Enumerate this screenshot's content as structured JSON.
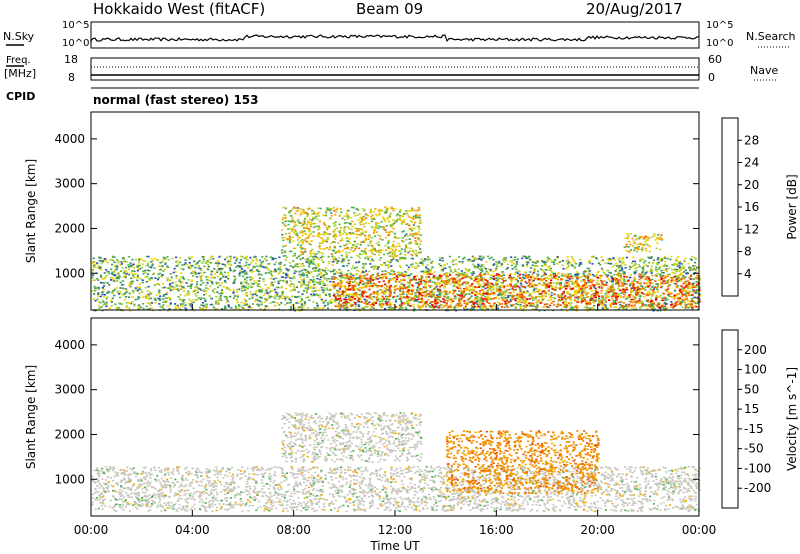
{
  "header": {
    "station": "Hokkaido West (fitACF)",
    "beam": "Beam 09",
    "date": "20/Aug/2017"
  },
  "strip_labels": {
    "nsky": "N.Sky",
    "nsearch": "N.Search",
    "freq_line1": "Freq.",
    "freq_line2": "[MHz]",
    "nave": "Nave",
    "cpid": "CPID",
    "mode": "normal (fast stereo) 153",
    "noise_ticks": [
      "10^5",
      "10^0"
    ],
    "freq_ticks": [
      "18",
      "8"
    ],
    "nave_ticks": [
      "60",
      "0"
    ]
  },
  "colors": {
    "power_scale": [
      "#1414e6",
      "#2850b4",
      "#3c8c64",
      "#50b450",
      "#b4d23c",
      "#f0d200",
      "#f5a000",
      "#f07800",
      "#f03c00",
      "#e60000"
    ],
    "velocity_scale": [
      "#2828c8",
      "#3c8c64",
      "#50b450",
      "#78d23c",
      "#c8c8c0",
      "#c8c8c0",
      "#f5b000",
      "#f08c00",
      "#f05000",
      "#e60000"
    ],
    "ground": "#c8c8c0"
  },
  "chart_data": [
    {
      "type": "heatmap",
      "title": "",
      "xlabel": "",
      "ylabel": "Slant Range [km]",
      "colorbar_label": "Power [dB]",
      "x": [
        "00:00",
        "04:00",
        "08:00",
        "12:00",
        "16:00",
        "20:00",
        "00:00"
      ],
      "xlim": [
        0,
        24
      ],
      "ylim": [
        180,
        4600
      ],
      "yticks": [
        1000,
        2000,
        3000,
        4000
      ],
      "colorbar_ticks": [
        4,
        8,
        12,
        16,
        20,
        24,
        28
      ],
      "colorbar_range": [
        0,
        32
      ],
      "scatter_regions": [
        {
          "t": [
            0,
            24
          ],
          "range": [
            180,
            1400
          ],
          "value": 12
        },
        {
          "t": [
            7.5,
            13
          ],
          "range": [
            1400,
            2500
          ],
          "value": 16
        },
        {
          "t": [
            9.5,
            24
          ],
          "range": [
            250,
            1000
          ],
          "value": 24
        },
        {
          "t": [
            21,
            22.5
          ],
          "range": [
            1500,
            1900
          ],
          "value": 18
        }
      ]
    },
    {
      "type": "heatmap",
      "title": "",
      "xlabel": "Time UT",
      "ylabel": "Slant Range [km]",
      "colorbar_label": "Velocity [m s^-1]",
      "x": [
        "00:00",
        "04:00",
        "08:00",
        "12:00",
        "16:00",
        "20:00",
        "00:00"
      ],
      "xlim": [
        0,
        24
      ],
      "ylim": [
        180,
        4600
      ],
      "yticks": [
        1000,
        2000,
        3000,
        4000
      ],
      "colorbar_ticks": [
        200,
        100,
        50,
        15,
        -15,
        -50,
        -100,
        -200
      ],
      "scatter_regions": [
        {
          "t": [
            0,
            24
          ],
          "range": [
            300,
            1300
          ],
          "value": 0
        },
        {
          "t": [
            7.5,
            13
          ],
          "range": [
            1400,
            2500
          ],
          "value": 0
        },
        {
          "t": [
            14,
            20
          ],
          "range": [
            700,
            2100
          ],
          "value": -60
        }
      ]
    }
  ]
}
